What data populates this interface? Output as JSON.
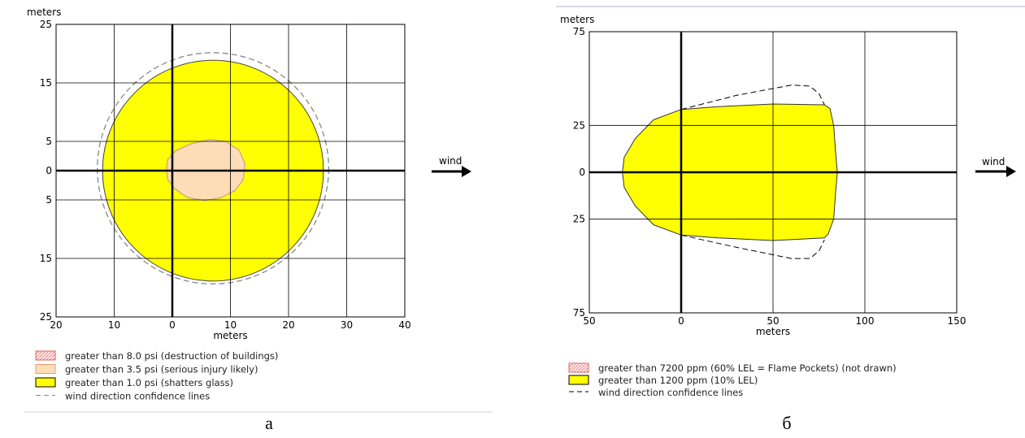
{
  "colors": {
    "yellow": "#ffff00",
    "peach": "#fddcb8",
    "red_hatch": "#f08080",
    "grid": "#000000",
    "confidence": "#888888"
  },
  "chart_data": [
    {
      "type": "area",
      "caption": "а",
      "y_unit": "meters",
      "x_unit": "meters",
      "xlim": [
        -20,
        40
      ],
      "ylim": [
        -25,
        25
      ],
      "x_ticks": [
        {
          "value": -20,
          "label": "20"
        },
        {
          "value": -10,
          "label": "10"
        },
        {
          "value": 0,
          "label": "0"
        },
        {
          "value": 10,
          "label": "10"
        },
        {
          "value": 20,
          "label": "20"
        },
        {
          "value": 30,
          "label": "30"
        },
        {
          "value": 40,
          "label": "40"
        }
      ],
      "y_ticks": [
        {
          "value": 25,
          "label": "25"
        },
        {
          "value": 15,
          "label": "15"
        },
        {
          "value": 5,
          "label": "5"
        },
        {
          "value": 0,
          "label": "0"
        },
        {
          "value": -5,
          "label": "5"
        },
        {
          "value": -15,
          "label": "15"
        },
        {
          "value": -25,
          "label": "25"
        }
      ],
      "grid": true,
      "wind_label": "wind",
      "zones": [
        {
          "level": "greater than 1.0 psi",
          "shape": "circle",
          "center": [
            7,
            0
          ],
          "radius": 19,
          "color": "#ffff00"
        },
        {
          "level": "greater than 3.5 psi",
          "shape": "blob",
          "points": [
            [
              -1,
              0
            ],
            [
              -0.8,
              1.9
            ],
            [
              0.6,
              3.4
            ],
            [
              3.2,
              4.6
            ],
            [
              6.4,
              5.3
            ],
            [
              9.2,
              5.0
            ],
            [
              11.5,
              3.5
            ],
            [
              12.5,
              1.2
            ],
            [
              12.2,
              -1.5
            ],
            [
              10.8,
              -3.4
            ],
            [
              8.4,
              -4.6
            ],
            [
              5.6,
              -5.1
            ],
            [
              2.6,
              -4.6
            ],
            [
              0.4,
              -3.1
            ],
            [
              -0.8,
              -1.5
            ]
          ],
          "color": "#fddcb8"
        }
      ],
      "confidence_lines": {
        "shape": "circle",
        "center": [
          7,
          0.4
        ],
        "radius": 19.9
      },
      "legend": [
        {
          "swatch": "red_hatch",
          "label": "greater than 8.0 psi (destruction of buildings)"
        },
        {
          "swatch": "peach",
          "label": "greater than 3.5 psi (serious injury likely)"
        },
        {
          "swatch": "yellow",
          "label": "greater than 1.0 psi (shatters glass)"
        },
        {
          "swatch": "dash",
          "label": "wind direction confidence lines"
        }
      ]
    },
    {
      "type": "area",
      "caption": "б",
      "y_unit": "meters",
      "x_unit": "meters",
      "xlim": [
        -50,
        150
      ],
      "ylim": [
        -75,
        75
      ],
      "x_ticks": [
        {
          "value": -50,
          "label": "50"
        },
        {
          "value": 0,
          "label": "0"
        },
        {
          "value": 50,
          "label": "50"
        },
        {
          "value": 100,
          "label": "100"
        },
        {
          "value": 150,
          "label": "150"
        }
      ],
      "y_ticks": [
        {
          "value": 75,
          "label": "75"
        },
        {
          "value": 25,
          "label": "25"
        },
        {
          "value": 0,
          "label": "0"
        },
        {
          "value": -25,
          "label": "25"
        },
        {
          "value": -75,
          "label": "75"
        }
      ],
      "grid": true,
      "wind_label": "wind",
      "zones": [
        {
          "level": "greater than 1200 ppm",
          "shape": "plume",
          "points": [
            [
              0,
              33.5
            ],
            [
              20,
              35
            ],
            [
              50,
              36.4
            ],
            [
              78,
              36
            ],
            [
              81,
              34
            ],
            [
              83,
              25
            ],
            [
              84,
              12
            ],
            [
              85,
              0
            ],
            [
              84,
              -12
            ],
            [
              83,
              -25
            ],
            [
              80,
              -33
            ],
            [
              78,
              -35
            ],
            [
              50,
              -36.4
            ],
            [
              20,
              -35
            ],
            [
              0,
              -33.5
            ],
            [
              -15,
              -28
            ],
            [
              -25,
              -18
            ],
            [
              -31,
              -8
            ],
            [
              -32,
              0
            ],
            [
              -31,
              8
            ],
            [
              -25,
              18
            ],
            [
              -15,
              28
            ]
          ],
          "color": "#ffff00"
        }
      ],
      "confidence_lines": {
        "shape": "polyline",
        "upper": [
          [
            0,
            33.5
          ],
          [
            30,
            41
          ],
          [
            60,
            46.5
          ],
          [
            70,
            46
          ],
          [
            75,
            42
          ],
          [
            78,
            36
          ]
        ],
        "lower": [
          [
            0,
            -33.5
          ],
          [
            30,
            -40
          ],
          [
            60,
            -46
          ],
          [
            70,
            -46
          ],
          [
            75,
            -42
          ],
          [
            78,
            -36
          ]
        ]
      },
      "legend": [
        {
          "swatch": "red_hatch",
          "label": "greater than 7200 ppm (60% LEL = Flame Pockets) (not drawn)"
        },
        {
          "swatch": "yellow",
          "label": "greater than 1200 ppm (10% LEL)"
        },
        {
          "swatch": "dash",
          "label": "wind direction confidence lines"
        }
      ]
    }
  ]
}
